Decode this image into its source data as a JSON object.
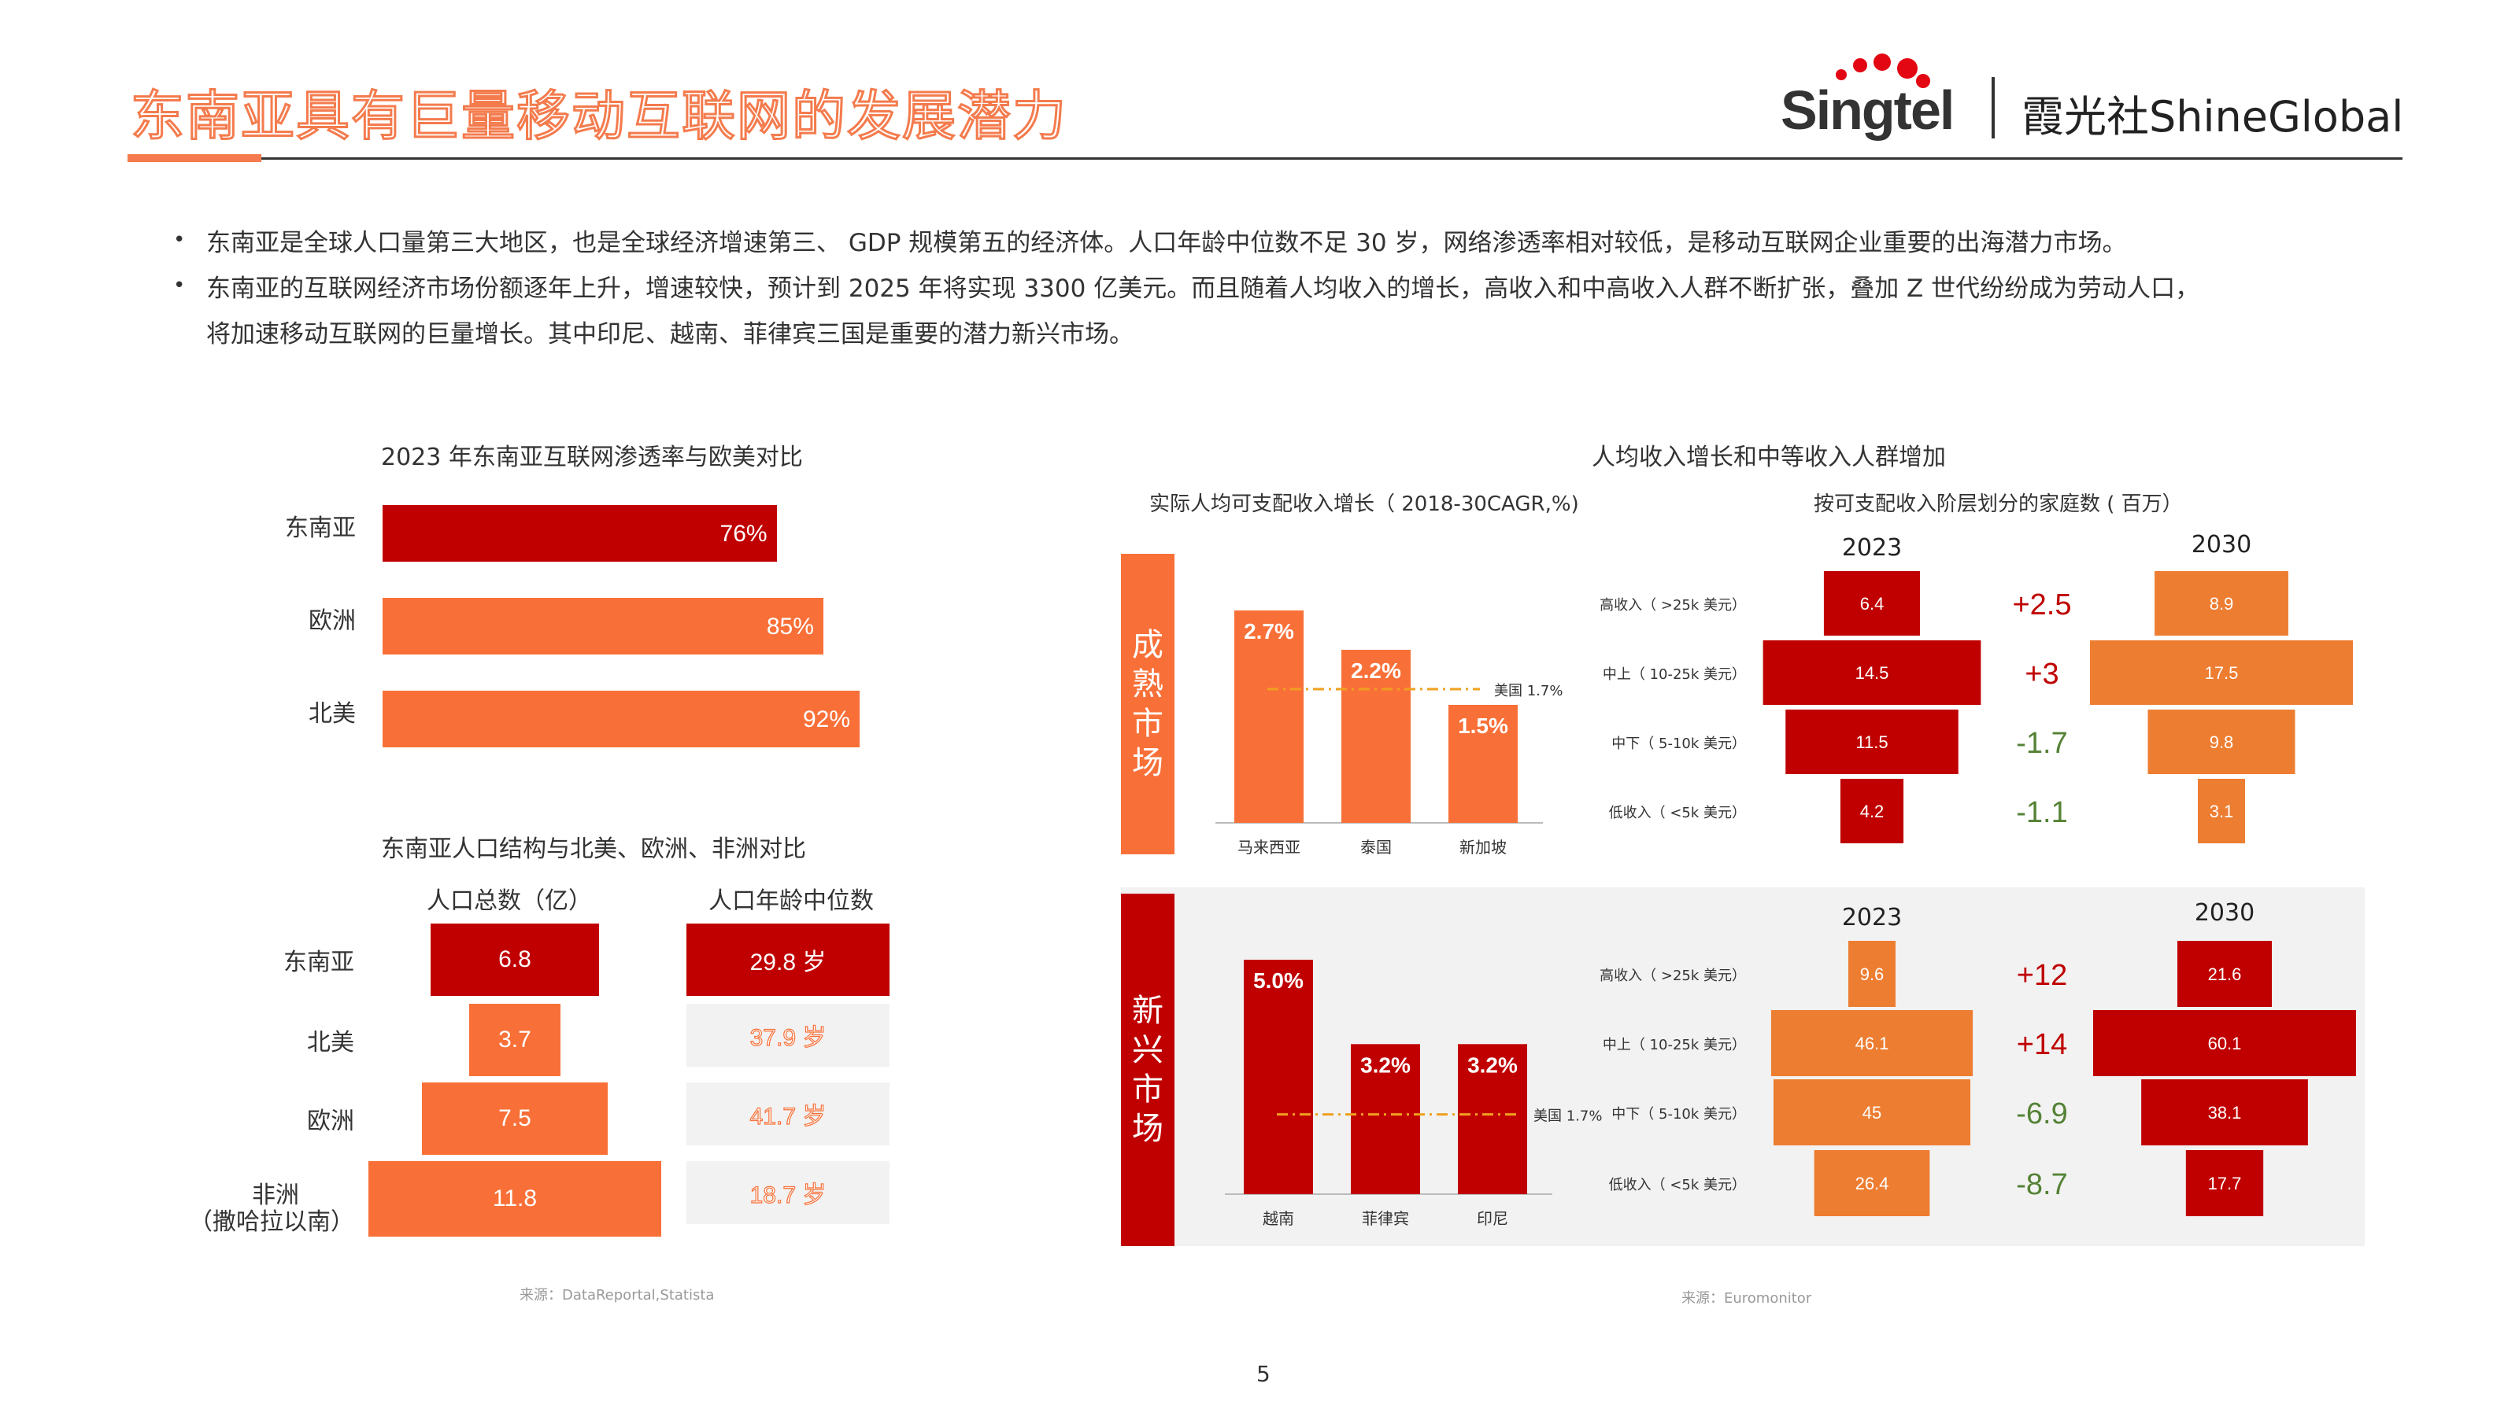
{
  "header": {
    "title": "东南亚具有巨量移动互联网的发展潜力",
    "logo_singtel": "Singtel",
    "logo_shine": "霞光社ShineGlobal"
  },
  "bullets": [
    "东南亚是全球人口量第三大地区，也是全球经济增速第三、 GDP 规模第五的经济体。人口年龄中位数不足 30 岁，网络渗透率相对较低，是移动互联网企业重要的出海潜力市场。",
    "东南亚的互联网经济市场份额逐年上升，增速较快，预计到 2025 年将实现 3300 亿美元。而且随着人均收入的增长，高收入和中高收入人群不断扩张，叠加 Z 世代纷纷成为劳动人口，",
    "将加速移动互联网的巨量增长。其中印尼、越南、菲律宾三国是重要的潜力新兴市场。"
  ],
  "penetration": {
    "title": "2023 年东南亚互联网渗透率与欧美对比",
    "rows": [
      {
        "label": "东南亚",
        "value": 76,
        "text": "76%",
        "color": "#C00000"
      },
      {
        "label": "欧洲",
        "value": 85,
        "text": "85%",
        "color": "#F87038"
      },
      {
        "label": "北美",
        "value": 92,
        "text": "92%",
        "color": "#F87038"
      }
    ]
  },
  "population": {
    "title": "东南亚人口结构与北美、欧洲、非洲对比",
    "col1": "人口总数（亿）",
    "col2": "人口年龄中位数",
    "rows": [
      {
        "label": "东南亚",
        "label2": "",
        "total": 6.8,
        "total_text": "6.8",
        "median": "29.8 岁"
      },
      {
        "label": "北美",
        "label2": "",
        "total": 3.7,
        "total_text": "3.7",
        "median": "37.9 岁"
      },
      {
        "label": "欧洲",
        "label2": "",
        "total": 7.5,
        "total_text": "7.5",
        "median": "41.7 岁"
      },
      {
        "label": "非洲",
        "label2": "（撒哈拉以南）",
        "total": 11.8,
        "total_text": "11.8",
        "median": "18.7 岁"
      }
    ],
    "source": "来源：DataReportal,Statista"
  },
  "income": {
    "title": "人均收入增长和中等收入人群增加",
    "sub_left": "实际人均可支配收入增长（ 2018-30CAGR,%)",
    "sub_right": "按可支配收入阶层划分的家庭数 ( 百万）",
    "mature_label": "成熟市场",
    "emerging_label": "新兴市场",
    "us_ref": "美国 1.7%",
    "mature_bars": [
      {
        "country": "马来西亚",
        "value": 2.7,
        "text": "2.7%"
      },
      {
        "country": "泰国",
        "value": 2.2,
        "text": "2.2%"
      },
      {
        "country": "新加坡",
        "value": 1.5,
        "text": "1.5%"
      }
    ],
    "emerging_bars": [
      {
        "country": "越南",
        "value": 5.0,
        "text": "5.0%"
      },
      {
        "country": "菲律宾",
        "value": 3.2,
        "text": "3.2%"
      },
      {
        "country": "印尼",
        "value": 3.2,
        "text": "3.2%"
      }
    ],
    "tiers": [
      "高收入（ >25k 美元）",
      "中上（ 10-25k 美元）",
      "中下（ 5-10k 美元）",
      "低收入（ <5k 美元）"
    ],
    "year_a": "2023",
    "year_b": "2030",
    "mature_2023": [
      6.4,
      14.5,
      11.5,
      4.2
    ],
    "mature_2023_text": [
      "6.4",
      "14.5",
      "11.5",
      "4.2"
    ],
    "mature_2030": [
      8.9,
      17.5,
      9.8,
      3.1
    ],
    "mature_2030_text": [
      "8.9",
      "17.5",
      "9.8",
      "3.1"
    ],
    "mature_change": [
      "+2.5",
      "+3",
      "-1.7",
      "-1.1"
    ],
    "emerging_2023": [
      9.6,
      46.1,
      45,
      26.4
    ],
    "emerging_2023_text": [
      "9.6",
      "46.1",
      "45",
      "26.4"
    ],
    "emerging_2030": [
      21.6,
      60.1,
      38.1,
      17.7
    ],
    "emerging_2030_text": [
      "21.6",
      "60.1",
      "38.1",
      "17.7"
    ],
    "emerging_change": [
      "+12",
      "+14",
      "-6.9",
      "-8.7"
    ],
    "source": "来源：Euromonitor"
  },
  "colors": {
    "red": "#C00000",
    "orange": "#F87038",
    "orange_light": "#ED7D31",
    "green": "#548235",
    "grey_bg": "#F2F2F2"
  },
  "page_number": "5"
}
